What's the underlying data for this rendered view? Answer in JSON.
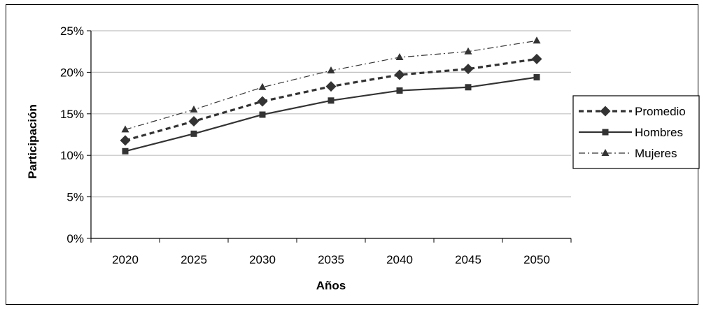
{
  "chart_data": {
    "type": "line",
    "title": "",
    "xlabel": "Años",
    "ylabel": "Participación",
    "x": [
      2020,
      2025,
      2030,
      2035,
      2040,
      2045,
      2050
    ],
    "ylim": [
      0,
      25
    ],
    "yticks": [
      "0%",
      "5%",
      "10%",
      "15%",
      "20%",
      "25%"
    ],
    "grid": "horizontal",
    "legend_position": "right",
    "series": [
      {
        "name": "Promedio",
        "values": [
          11.8,
          14.1,
          16.5,
          18.3,
          19.7,
          20.4,
          21.6
        ],
        "marker": "diamond",
        "line": "dashed"
      },
      {
        "name": "Hombres",
        "values": [
          10.5,
          12.6,
          14.9,
          16.6,
          17.8,
          18.2,
          19.4
        ],
        "marker": "square",
        "line": "solid"
      },
      {
        "name": "Mujeres",
        "values": [
          13.1,
          15.5,
          18.2,
          20.2,
          21.8,
          22.5,
          23.8
        ],
        "marker": "triangle",
        "line": "dashdot"
      }
    ]
  }
}
